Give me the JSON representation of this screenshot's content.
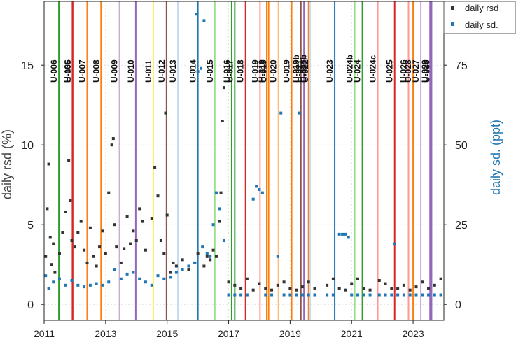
{
  "chart_data": {
    "type": "scatter",
    "title": "",
    "xlabel": "",
    "ylabel": "daily rsd (%)",
    "y2label": "daily sd. (ppt)",
    "xlim": [
      2011,
      2024
    ],
    "ylim": [
      -1,
      19
    ],
    "y2lim": [
      -5,
      95
    ],
    "x_ticks": [
      2011,
      2013,
      2015,
      2017,
      2019,
      2021,
      2023
    ],
    "y_ticks": [
      0,
      5,
      10,
      15
    ],
    "y2_ticks": [
      0,
      25,
      50,
      75
    ],
    "grid": true,
    "legend_position": "top-right",
    "series": [
      {
        "name": "daily rsd",
        "axis": "left",
        "color": "#333333",
        "marker": "square",
        "description_points": "sampled approximation of dense daily scatter",
        "x": [
          2011.05,
          2011.1,
          2011.15,
          2011.2,
          2011.25,
          2011.3,
          2011.35,
          2011.5,
          2011.6,
          2011.7,
          2011.8,
          2011.85,
          2011.9,
          2012.0,
          2012.1,
          2012.2,
          2012.3,
          2012.4,
          2012.5,
          2012.6,
          2012.7,
          2012.8,
          2012.9,
          2013.0,
          2013.1,
          2013.2,
          2013.25,
          2013.3,
          2013.35,
          2013.5,
          2013.6,
          2013.7,
          2013.8,
          2013.9,
          2014.0,
          2014.1,
          2014.2,
          2014.3,
          2014.5,
          2014.6,
          2014.7,
          2014.8,
          2014.9,
          2014.95,
          2015.0,
          2015.1,
          2015.2,
          2015.3,
          2015.5,
          2015.7,
          2015.9,
          2016.0,
          2016.2,
          2016.3,
          2016.4,
          2016.5,
          2016.6,
          2016.7,
          2016.75,
          2016.8,
          2016.85,
          2017.0,
          2017.2,
          2017.4,
          2017.6,
          2017.8,
          2018.0,
          2018.2,
          2018.4,
          2018.6,
          2018.8,
          2019.0,
          2019.2,
          2019.4,
          2019.6,
          2019.8,
          2020.2,
          2020.4,
          2020.6,
          2020.8,
          2021.0,
          2021.2,
          2021.4,
          2021.6,
          2021.9,
          2022.1,
          2022.3,
          2022.5,
          2022.7,
          2022.9,
          2023.1,
          2023.3,
          2023.5,
          2023.7,
          2023.9
        ],
        "y": [
          3.0,
          6.0,
          8.8,
          4.2,
          2.5,
          3.8,
          2.0,
          3.2,
          4.5,
          5.8,
          9.0,
          6.5,
          4.0,
          3.6,
          4.5,
          5.2,
          3.4,
          2.6,
          4.8,
          3.0,
          2.4,
          3.6,
          4.6,
          3.2,
          7.0,
          10.0,
          10.4,
          5.0,
          3.6,
          2.6,
          3.5,
          5.5,
          3.8,
          4.6,
          4.0,
          6.0,
          5.2,
          3.4,
          5.4,
          8.6,
          6.8,
          4.0,
          3.2,
          12.0,
          5.6,
          2.0,
          2.6,
          2.4,
          2.8,
          2.2,
          2.6,
          3.2,
          2.4,
          3.0,
          2.8,
          3.4,
          3.0,
          5.2,
          7.0,
          11.5,
          13.6,
          1.4,
          1.2,
          1.0,
          1.6,
          0.9,
          1.3,
          1.0,
          0.9,
          1.2,
          1.4,
          1.0,
          0.9,
          1.1,
          1.4,
          1.0,
          1.2,
          1.6,
          1.0,
          0.9,
          1.3,
          1.6,
          1.0,
          0.9,
          1.5,
          1.3,
          1.0,
          1.0,
          1.2,
          0.9,
          1.1,
          1.4,
          1.0,
          1.2,
          1.6
        ]
      },
      {
        "name": "daily sd.",
        "axis": "right",
        "color": "#1f77b4",
        "marker": "square",
        "x": [
          2011.05,
          2011.15,
          2011.3,
          2011.5,
          2011.7,
          2011.9,
          2012.1,
          2012.3,
          2012.5,
          2012.7,
          2012.9,
          2013.1,
          2013.3,
          2013.5,
          2013.7,
          2013.9,
          2014.1,
          2014.3,
          2014.5,
          2014.7,
          2014.9,
          2015.1,
          2015.3,
          2015.5,
          2015.7,
          2015.9,
          2015.95,
          2016.0,
          2016.1,
          2016.15,
          2016.2,
          2016.3,
          2016.4,
          2016.5,
          2016.6,
          2016.7,
          2016.85,
          2017.0,
          2017.2,
          2017.4,
          2017.6,
          2017.8,
          2017.9,
          2018.0,
          2018.1,
          2018.2,
          2018.4,
          2018.6,
          2018.7,
          2018.8,
          2019.0,
          2019.2,
          2019.3,
          2019.4,
          2019.6,
          2019.8,
          2020.2,
          2020.4,
          2020.6,
          2020.7,
          2020.8,
          2020.9,
          2021.0,
          2021.2,
          2021.4,
          2021.6,
          2021.9,
          2022.1,
          2022.3,
          2022.4,
          2022.5,
          2022.7,
          2022.9,
          2023.1,
          2023.3,
          2023.5,
          2023.7,
          2023.9
        ],
        "y": [
          9.0,
          5.0,
          7.0,
          8.0,
          6.0,
          7.5,
          6.0,
          5.5,
          6.0,
          6.5,
          6.0,
          7.0,
          11.0,
          8.0,
          9.5,
          10.0,
          8.0,
          7.0,
          6.0,
          9.0,
          8.0,
          8.5,
          10.0,
          11.0,
          12.0,
          13.0,
          91.0,
          73.0,
          74.0,
          18.0,
          89.0,
          16.0,
          15.0,
          25.0,
          35.0,
          30.0,
          20.0,
          3.0,
          3.0,
          3.0,
          3.0,
          33.0,
          37.0,
          36.0,
          35.0,
          3.0,
          3.0,
          15.0,
          60.0,
          3.0,
          3.0,
          3.0,
          60.0,
          3.0,
          3.0,
          3.0,
          3.0,
          3.0,
          22.0,
          22.0,
          22.0,
          21.0,
          3.0,
          3.0,
          3.0,
          3.0,
          3.0,
          3.0,
          3.0,
          19.0,
          3.0,
          3.0,
          3.0,
          3.0,
          3.0,
          3.0,
          3.0,
          3.0
        ]
      }
    ],
    "event_lines": [
      {
        "x": 2011.48,
        "label": "U-006",
        "color": "#2ca02c"
      },
      {
        "x": 2011.92,
        "label": "H-136",
        "color": "#d62728"
      },
      {
        "x": 2011.93,
        "label": "U-005",
        "color": "#d62728"
      },
      {
        "x": 2012.4,
        "label": "U-007",
        "color": "#ff7f0e"
      },
      {
        "x": 2012.85,
        "label": "U-008",
        "color": "#ff7f0e"
      },
      {
        "x": 2013.45,
        "label": "U-009",
        "color": "#c5b0d5"
      },
      {
        "x": 2013.98,
        "label": "U-010",
        "color": "#9467bd"
      },
      {
        "x": 2014.55,
        "label": "U-011",
        "color": "#ffee58"
      },
      {
        "x": 2014.98,
        "label": "U-012",
        "color": "#8c564b"
      },
      {
        "x": 2015.35,
        "label": "U-013",
        "color": "#c6dbef"
      },
      {
        "x": 2016.0,
        "label": "U-014",
        "color": "#1f77b4"
      },
      {
        "x": 2016.55,
        "label": "U-015",
        "color": "#98df8a"
      },
      {
        "x": 2017.1,
        "label": "U-016",
        "color": "#2ca02c"
      },
      {
        "x": 2017.2,
        "label": "U-017",
        "color": "#2ca02c"
      },
      {
        "x": 2017.55,
        "label": "U-018",
        "color": "#d62728"
      },
      {
        "x": 2018.02,
        "label": "U-019",
        "color": "#ff9896"
      },
      {
        "x": 2018.24,
        "label": "H-219",
        "color": "#ff7f0e"
      },
      {
        "x": 2018.3,
        "label": "U-019",
        "color": "#ff7f0e"
      },
      {
        "x": 2018.62,
        "label": "U-020",
        "color": "#ffbb78"
      },
      {
        "x": 2019.05,
        "label": "U-019",
        "color": "#ff7f0e"
      },
      {
        "x": 2019.35,
        "label": "U-019b",
        "color": "#8c564b"
      },
      {
        "x": 2019.45,
        "label": "U-021",
        "color": "#9467bd"
      },
      {
        "x": 2019.6,
        "label": "U-021b",
        "color": "#ff7f0e"
      },
      {
        "x": 2019.65,
        "label": "U-022",
        "color": "#c6dbef"
      },
      {
        "x": 2020.45,
        "label": "U-023",
        "color": "#1f77b4"
      },
      {
        "x": 2021.1,
        "label": "U-024b",
        "color": "#98df8a"
      },
      {
        "x": 2021.35,
        "label": "U-024",
        "color": "#2ca02c"
      },
      {
        "x": 2021.85,
        "label": "U-024c",
        "color": "#ff9896"
      },
      {
        "x": 2022.4,
        "label": "U-025",
        "color": "#d62728"
      },
      {
        "x": 2022.85,
        "label": "U-026",
        "color": "#ff9896"
      },
      {
        "x": 2023.0,
        "label": "U-028",
        "color": "#ff7f0e"
      },
      {
        "x": 2023.25,
        "label": "U-027",
        "color": "#c5b0d5"
      },
      {
        "x": 2023.55,
        "label": "U-029",
        "color": "#9467bd"
      },
      {
        "x": 2023.6,
        "label": "U-030",
        "color": "#9467bd"
      }
    ]
  }
}
